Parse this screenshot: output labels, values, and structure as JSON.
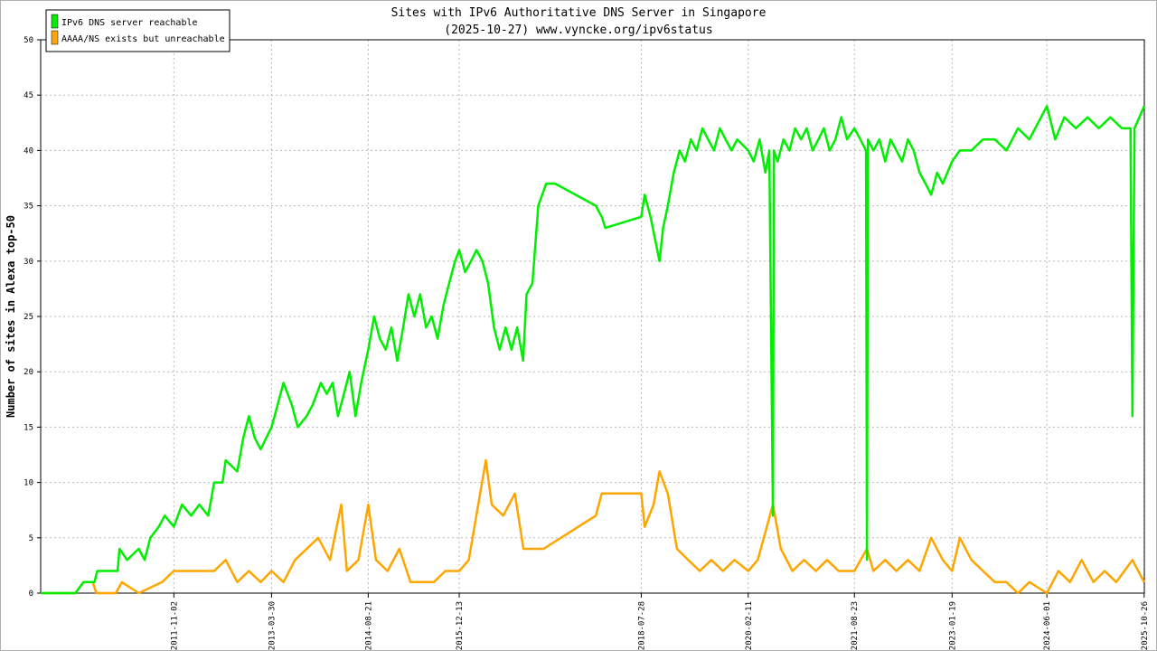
{
  "chart_data": {
    "type": "line",
    "title": "Sites with IPv6 Authoritative DNS Server in Singapore",
    "subtitle": "(2025-10-27) www.vyncke.org/ipv6status",
    "ylabel": "Number of sites in Alexa top-50",
    "xlabel": "",
    "ylim": [
      0,
      50
    ],
    "yticks": [
      0,
      5,
      10,
      15,
      20,
      25,
      30,
      35,
      40,
      45,
      50
    ],
    "x_range": [
      "2009-12-01",
      "2025-10-27"
    ],
    "xticks": [
      "2011-11-02",
      "2013-03-30",
      "2014-08-21",
      "2015-12-13",
      "2018-07-28",
      "2020-02-11",
      "2021-08-23",
      "2023-01-19",
      "2024-06-01",
      "2025-10-26"
    ],
    "grid": true,
    "legend_position": "top-left",
    "series": [
      {
        "name": "IPv6 DNS server reachable",
        "color": "#00ee00",
        "points": [
          [
            "2009-12-01",
            0
          ],
          [
            "2010-06-01",
            0
          ],
          [
            "2010-07-15",
            1
          ],
          [
            "2010-09-10",
            1
          ],
          [
            "2010-09-25",
            2
          ],
          [
            "2011-01-10",
            2
          ],
          [
            "2011-01-20",
            4
          ],
          [
            "2011-03-01",
            3
          ],
          [
            "2011-05-01",
            4
          ],
          [
            "2011-06-01",
            3
          ],
          [
            "2011-07-01",
            5
          ],
          [
            "2011-08-15",
            6
          ],
          [
            "2011-09-15",
            7
          ],
          [
            "2011-11-02",
            6
          ],
          [
            "2011-12-15",
            8
          ],
          [
            "2012-02-01",
            7
          ],
          [
            "2012-03-15",
            8
          ],
          [
            "2012-05-01",
            7
          ],
          [
            "2012-06-01",
            10
          ],
          [
            "2012-07-15",
            10
          ],
          [
            "2012-08-01",
            12
          ],
          [
            "2012-10-01",
            11
          ],
          [
            "2012-11-01",
            14
          ],
          [
            "2012-12-01",
            16
          ],
          [
            "2013-01-01",
            14
          ],
          [
            "2013-02-01",
            13
          ],
          [
            "2013-03-30",
            15
          ],
          [
            "2013-05-01",
            17
          ],
          [
            "2013-06-01",
            19
          ],
          [
            "2013-07-15",
            17
          ],
          [
            "2013-08-15",
            15
          ],
          [
            "2013-10-01",
            16
          ],
          [
            "2013-11-01",
            17
          ],
          [
            "2013-12-15",
            19
          ],
          [
            "2014-01-15",
            18
          ],
          [
            "2014-02-15",
            19
          ],
          [
            "2014-03-15",
            16
          ],
          [
            "2014-04-15",
            18
          ],
          [
            "2014-05-15",
            20
          ],
          [
            "2014-06-15",
            16
          ],
          [
            "2014-07-15",
            19
          ],
          [
            "2014-08-21",
            22
          ],
          [
            "2014-09-21",
            25
          ],
          [
            "2014-10-21",
            23
          ],
          [
            "2014-11-21",
            22
          ],
          [
            "2014-12-21",
            24
          ],
          [
            "2015-01-21",
            21
          ],
          [
            "2015-02-21",
            24
          ],
          [
            "2015-03-21",
            27
          ],
          [
            "2015-04-21",
            25
          ],
          [
            "2015-05-21",
            27
          ],
          [
            "2015-06-21",
            24
          ],
          [
            "2015-07-21",
            25
          ],
          [
            "2015-08-21",
            23
          ],
          [
            "2015-09-21",
            26
          ],
          [
            "2015-10-21",
            28
          ],
          [
            "2015-11-21",
            30
          ],
          [
            "2015-12-13",
            31
          ],
          [
            "2016-01-13",
            29
          ],
          [
            "2016-02-13",
            30
          ],
          [
            "2016-03-13",
            31
          ],
          [
            "2016-04-13",
            30
          ],
          [
            "2016-05-13",
            28
          ],
          [
            "2016-06-13",
            24
          ],
          [
            "2016-07-13",
            22
          ],
          [
            "2016-08-13",
            24
          ],
          [
            "2016-09-13",
            22
          ],
          [
            "2016-10-13",
            24
          ],
          [
            "2016-11-13",
            21
          ],
          [
            "2016-12-01",
            27
          ],
          [
            "2017-01-01",
            28
          ],
          [
            "2017-02-01",
            35
          ],
          [
            "2017-03-15",
            37
          ],
          [
            "2017-05-01",
            37
          ],
          [
            "2017-12-01",
            35
          ],
          [
            "2018-01-01",
            34
          ],
          [
            "2018-01-20",
            33
          ],
          [
            "2018-07-28",
            34
          ],
          [
            "2018-08-15",
            36
          ],
          [
            "2018-09-15",
            34
          ],
          [
            "2018-11-01",
            30
          ],
          [
            "2018-11-20",
            33
          ],
          [
            "2018-12-15",
            35
          ],
          [
            "2019-01-15",
            38
          ],
          [
            "2019-02-15",
            40
          ],
          [
            "2019-03-15",
            39
          ],
          [
            "2019-04-15",
            41
          ],
          [
            "2019-05-15",
            40
          ],
          [
            "2019-06-15",
            42
          ],
          [
            "2019-07-15",
            41
          ],
          [
            "2019-08-15",
            40
          ],
          [
            "2019-09-15",
            42
          ],
          [
            "2019-10-15",
            41
          ],
          [
            "2019-11-15",
            40
          ],
          [
            "2019-12-15",
            41
          ],
          [
            "2020-02-11",
            40
          ],
          [
            "2020-03-11",
            39
          ],
          [
            "2020-04-11",
            41
          ],
          [
            "2020-05-11",
            38
          ],
          [
            "2020-06-01",
            40
          ],
          [
            "2020-06-20",
            7
          ],
          [
            "2020-06-25",
            40
          ],
          [
            "2020-07-15",
            39
          ],
          [
            "2020-08-15",
            41
          ],
          [
            "2020-09-15",
            40
          ],
          [
            "2020-10-15",
            42
          ],
          [
            "2020-11-15",
            41
          ],
          [
            "2020-12-15",
            42
          ],
          [
            "2021-01-15",
            40
          ],
          [
            "2021-02-15",
            41
          ],
          [
            "2021-03-15",
            42
          ],
          [
            "2021-04-15",
            40
          ],
          [
            "2021-05-15",
            41
          ],
          [
            "2021-06-15",
            43
          ],
          [
            "2021-07-15",
            41
          ],
          [
            "2021-08-23",
            42
          ],
          [
            "2021-09-23",
            41
          ],
          [
            "2021-10-23",
            40
          ],
          [
            "2021-10-28",
            3
          ],
          [
            "2021-11-02",
            41
          ],
          [
            "2021-12-01",
            40
          ],
          [
            "2022-01-01",
            41
          ],
          [
            "2022-02-01",
            39
          ],
          [
            "2022-03-01",
            41
          ],
          [
            "2022-04-01",
            40
          ],
          [
            "2022-05-01",
            39
          ],
          [
            "2022-06-01",
            41
          ],
          [
            "2022-07-01",
            40
          ],
          [
            "2022-08-01",
            38
          ],
          [
            "2022-09-01",
            37
          ],
          [
            "2022-10-01",
            36
          ],
          [
            "2022-11-01",
            38
          ],
          [
            "2022-12-01",
            37
          ],
          [
            "2023-01-19",
            39
          ],
          [
            "2023-03-01",
            40
          ],
          [
            "2023-05-01",
            40
          ],
          [
            "2023-07-01",
            41
          ],
          [
            "2023-09-01",
            41
          ],
          [
            "2023-11-01",
            40
          ],
          [
            "2024-01-01",
            42
          ],
          [
            "2024-03-01",
            41
          ],
          [
            "2024-06-01",
            44
          ],
          [
            "2024-07-15",
            41
          ],
          [
            "2024-09-01",
            43
          ],
          [
            "2024-11-01",
            42
          ],
          [
            "2025-01-01",
            43
          ],
          [
            "2025-03-01",
            42
          ],
          [
            "2025-05-01",
            43
          ],
          [
            "2025-07-01",
            42
          ],
          [
            "2025-08-15",
            42
          ],
          [
            "2025-08-25",
            16
          ],
          [
            "2025-09-05",
            42
          ],
          [
            "2025-10-01",
            43
          ],
          [
            "2025-10-26",
            44
          ]
        ]
      },
      {
        "name": "AAAA/NS exists but unreachable",
        "color": "#ffa500",
        "points": [
          [
            "2009-12-01",
            0
          ],
          [
            "2010-06-01",
            0
          ],
          [
            "2010-07-15",
            1
          ],
          [
            "2010-09-01",
            1
          ],
          [
            "2010-09-20",
            0
          ],
          [
            "2011-01-01",
            0
          ],
          [
            "2011-02-01",
            1
          ],
          [
            "2011-05-01",
            0
          ],
          [
            "2011-09-01",
            1
          ],
          [
            "2011-11-02",
            2
          ],
          [
            "2012-01-01",
            2
          ],
          [
            "2012-04-01",
            2
          ],
          [
            "2012-06-01",
            2
          ],
          [
            "2012-08-01",
            3
          ],
          [
            "2012-10-01",
            1
          ],
          [
            "2012-12-01",
            2
          ],
          [
            "2013-02-01",
            1
          ],
          [
            "2013-03-30",
            2
          ],
          [
            "2013-06-01",
            1
          ],
          [
            "2013-08-01",
            3
          ],
          [
            "2013-10-01",
            4
          ],
          [
            "2013-12-01",
            5
          ],
          [
            "2014-02-01",
            3
          ],
          [
            "2014-04-01",
            8
          ],
          [
            "2014-05-01",
            2
          ],
          [
            "2014-07-01",
            3
          ],
          [
            "2014-08-21",
            8
          ],
          [
            "2014-10-01",
            3
          ],
          [
            "2014-12-01",
            2
          ],
          [
            "2015-02-01",
            4
          ],
          [
            "2015-04-01",
            1
          ],
          [
            "2015-06-01",
            1
          ],
          [
            "2015-08-01",
            1
          ],
          [
            "2015-10-01",
            2
          ],
          [
            "2015-12-13",
            2
          ],
          [
            "2016-02-01",
            3
          ],
          [
            "2016-04-01",
            9
          ],
          [
            "2016-05-01",
            12
          ],
          [
            "2016-06-01",
            8
          ],
          [
            "2016-08-01",
            7
          ],
          [
            "2016-10-01",
            9
          ],
          [
            "2016-11-15",
            4
          ],
          [
            "2017-01-01",
            4
          ],
          [
            "2017-03-01",
            4
          ],
          [
            "2017-12-01",
            7
          ],
          [
            "2018-01-01",
            9
          ],
          [
            "2018-06-01",
            9
          ],
          [
            "2018-07-28",
            9
          ],
          [
            "2018-08-15",
            6
          ],
          [
            "2018-10-01",
            8
          ],
          [
            "2018-11-01",
            11
          ],
          [
            "2018-12-15",
            9
          ],
          [
            "2019-02-01",
            4
          ],
          [
            "2019-04-01",
            3
          ],
          [
            "2019-06-01",
            2
          ],
          [
            "2019-08-01",
            3
          ],
          [
            "2019-10-01",
            2
          ],
          [
            "2019-12-01",
            3
          ],
          [
            "2020-02-11",
            2
          ],
          [
            "2020-04-01",
            3
          ],
          [
            "2020-06-20",
            8
          ],
          [
            "2020-08-01",
            4
          ],
          [
            "2020-10-01",
            2
          ],
          [
            "2020-12-01",
            3
          ],
          [
            "2021-02-01",
            2
          ],
          [
            "2021-04-01",
            3
          ],
          [
            "2021-06-01",
            2
          ],
          [
            "2021-08-23",
            2
          ],
          [
            "2021-10-28",
            4
          ],
          [
            "2021-12-01",
            2
          ],
          [
            "2022-02-01",
            3
          ],
          [
            "2022-04-01",
            2
          ],
          [
            "2022-06-01",
            3
          ],
          [
            "2022-08-01",
            2
          ],
          [
            "2022-10-01",
            5
          ],
          [
            "2022-12-01",
            3
          ],
          [
            "2023-01-19",
            2
          ],
          [
            "2023-03-01",
            5
          ],
          [
            "2023-05-01",
            3
          ],
          [
            "2023-07-01",
            2
          ],
          [
            "2023-09-01",
            1
          ],
          [
            "2023-11-01",
            1
          ],
          [
            "2024-01-01",
            0
          ],
          [
            "2024-03-01",
            1
          ],
          [
            "2024-06-01",
            0
          ],
          [
            "2024-08-01",
            2
          ],
          [
            "2024-10-01",
            1
          ],
          [
            "2024-12-01",
            3
          ],
          [
            "2025-02-01",
            1
          ],
          [
            "2025-04-01",
            2
          ],
          [
            "2025-06-01",
            1
          ],
          [
            "2025-08-25",
            3
          ],
          [
            "2025-10-26",
            1
          ]
        ]
      }
    ]
  }
}
